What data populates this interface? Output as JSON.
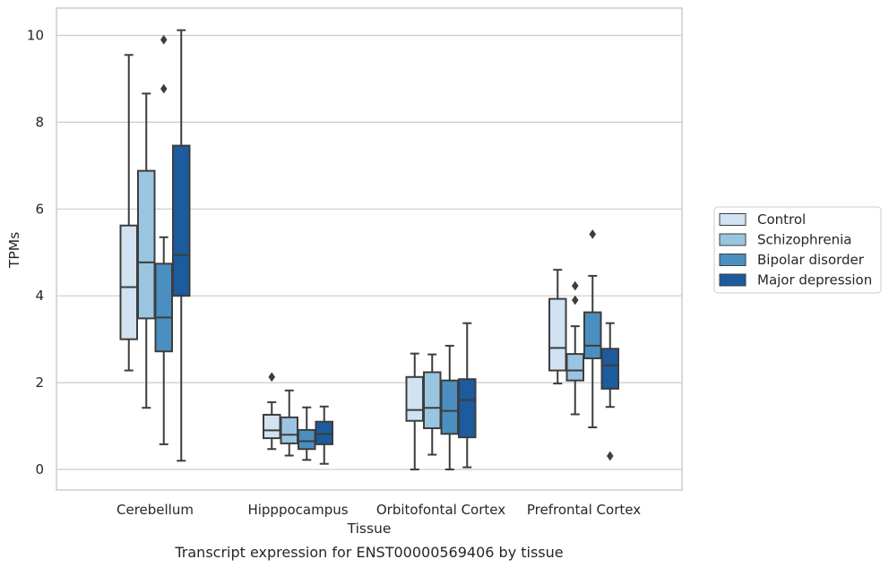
{
  "chart_data": {
    "type": "box",
    "xlabel": "Tissue",
    "ylabel": "TPMs",
    "caption": "Transcript expression for ENST00000569406 by tissue",
    "ylim": [
      -0.5,
      10.6
    ],
    "yticks": [
      0,
      2,
      4,
      6,
      8,
      10
    ],
    "grid": true,
    "legend_position": "right",
    "categories": [
      "Cerebellum",
      "Hipppocampus",
      "Orbitofontal Cortex",
      "Prefrontal Cortex"
    ],
    "series": [
      {
        "name": "Control",
        "color": "#d1e2f2",
        "boxes": [
          {
            "whisker_low": 2.28,
            "q1": 3.0,
            "median": 4.2,
            "q3": 5.62,
            "whisker_high": 9.55,
            "outliers": []
          },
          {
            "whisker_low": 0.47,
            "q1": 0.72,
            "median": 0.9,
            "q3": 1.26,
            "whisker_high": 1.55,
            "outliers": [
              2.13
            ]
          },
          {
            "whisker_low": 0.0,
            "q1": 1.12,
            "median": 1.37,
            "q3": 2.13,
            "whisker_high": 2.67,
            "outliers": []
          },
          {
            "whisker_low": 1.98,
            "q1": 2.28,
            "median": 2.8,
            "q3": 3.93,
            "whisker_high": 4.6,
            "outliers": []
          }
        ]
      },
      {
        "name": "Schizophrenia",
        "color": "#9ac5e0",
        "boxes": [
          {
            "whisker_low": 1.42,
            "q1": 3.48,
            "median": 4.77,
            "q3": 6.88,
            "whisker_high": 8.66,
            "outliers": []
          },
          {
            "whisker_low": 0.32,
            "q1": 0.6,
            "median": 0.8,
            "q3": 1.2,
            "whisker_high": 1.82,
            "outliers": []
          },
          {
            "whisker_low": 0.34,
            "q1": 0.95,
            "median": 1.42,
            "q3": 2.24,
            "whisker_high": 2.65,
            "outliers": []
          },
          {
            "whisker_low": 1.27,
            "q1": 2.05,
            "median": 2.28,
            "q3": 2.66,
            "whisker_high": 3.3,
            "outliers": [
              3.9,
              4.23
            ]
          }
        ]
      },
      {
        "name": "Bipolar disorder",
        "color": "#4b8fc1",
        "boxes": [
          {
            "whisker_low": 0.58,
            "q1": 2.72,
            "median": 3.5,
            "q3": 4.74,
            "whisker_high": 5.35,
            "outliers": [
              8.77,
              9.9
            ]
          },
          {
            "whisker_low": 0.22,
            "q1": 0.47,
            "median": 0.65,
            "q3": 0.91,
            "whisker_high": 1.43,
            "outliers": []
          },
          {
            "whisker_low": 0.0,
            "q1": 0.82,
            "median": 1.35,
            "q3": 2.05,
            "whisker_high": 2.85,
            "outliers": []
          },
          {
            "whisker_low": 0.97,
            "q1": 2.56,
            "median": 2.85,
            "q3": 3.62,
            "whisker_high": 4.46,
            "outliers": [
              5.42
            ]
          }
        ]
      },
      {
        "name": "Major depression",
        "color": "#1c5b9d",
        "boxes": [
          {
            "whisker_low": 0.2,
            "q1": 4.0,
            "median": 4.94,
            "q3": 7.46,
            "whisker_high": 10.12,
            "outliers": []
          },
          {
            "whisker_low": 0.13,
            "q1": 0.58,
            "median": 0.82,
            "q3": 1.1,
            "whisker_high": 1.45,
            "outliers": []
          },
          {
            "whisker_low": 0.05,
            "q1": 0.74,
            "median": 1.6,
            "q3": 2.08,
            "whisker_high": 3.37,
            "outliers": []
          },
          {
            "whisker_low": 1.44,
            "q1": 1.86,
            "median": 2.4,
            "q3": 2.78,
            "whisker_high": 3.37,
            "outliers": [
              0.31
            ]
          }
        ]
      }
    ]
  }
}
